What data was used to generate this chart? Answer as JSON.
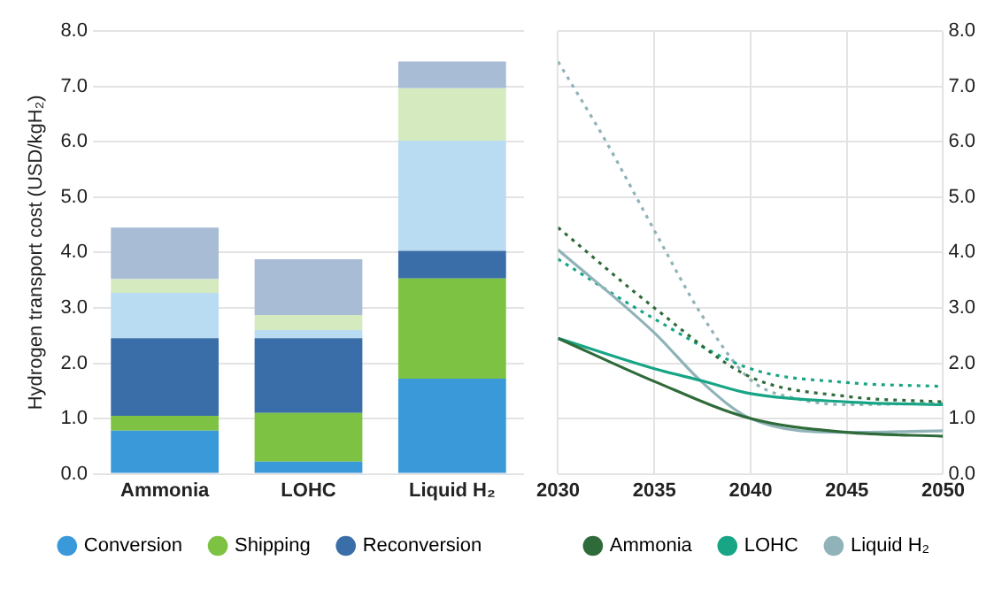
{
  "chart_data": [
    {
      "type": "bar",
      "ylabel": "Hydrogen transport cost (USD/kgH₂)",
      "categories": [
        "Ammonia",
        "LOHC",
        "Liquid H₂"
      ],
      "stacked": true,
      "series": [
        {
          "name": "Conversion",
          "color": "#3a9ad9",
          "values": [
            0.78,
            0.22,
            1.72
          ]
        },
        {
          "name": "Shipping",
          "color": "#7dc242",
          "values": [
            0.27,
            0.88,
            1.81
          ]
        },
        {
          "name": "Reconversion",
          "color": "#3a6ea8",
          "values": [
            1.4,
            1.35,
            0.5
          ]
        },
        {
          "color": "#b9dcf2",
          "values": [
            0.82,
            0.15,
            1.99
          ]
        },
        {
          "color": "#d5ebbf",
          "values": [
            0.25,
            0.27,
            0.95
          ]
        },
        {
          "color": "#a9bcd6",
          "values": [
            0.93,
            1.01,
            0.48
          ]
        }
      ],
      "ylim": [
        0,
        8
      ],
      "yticks": [
        {
          "value": 0,
          "label": "0.0"
        },
        {
          "value": 1,
          "label": "1.0"
        },
        {
          "value": 2,
          "label": "2.0"
        },
        {
          "value": 3,
          "label": "3.0"
        },
        {
          "value": 4,
          "label": "4.0"
        },
        {
          "value": 5,
          "label": "5.0"
        },
        {
          "value": 6,
          "label": "6.0"
        },
        {
          "value": 7,
          "label": "7.0"
        },
        {
          "value": 8,
          "label": "8.0"
        }
      ],
      "grid": "y",
      "legend": "bottom"
    },
    {
      "type": "line",
      "x": [
        2030,
        2035,
        2040,
        2045,
        2050
      ],
      "marker": "none",
      "series": [
        {
          "name": "Ammonia",
          "color": "#2f6b3a",
          "axis": "y2",
          "line_style": "solid",
          "values": [
            2.45,
            1.67,
            1.0,
            0.75,
            0.68
          ]
        },
        {
          "name": "LOHC",
          "color": "#17a585",
          "axis": "y2",
          "line_style": "solid",
          "x": [
            2030,
            2035,
            2037.5,
            2040,
            2045,
            2050
          ],
          "values": [
            2.45,
            1.9,
            1.68,
            1.45,
            1.3,
            1.25
          ]
        },
        {
          "name": "Liquid H₂",
          "color": "#8fb3b8",
          "axis": "y2",
          "line_style": "solid",
          "x": [
            2030,
            2035,
            2037.5,
            2040,
            2045,
            2050
          ],
          "values": [
            4.05,
            2.55,
            1.65,
            1.0,
            0.75,
            0.78
          ]
        },
        {
          "color": "#2f6b3a",
          "axis": "y2",
          "line_style": "dotted",
          "values": [
            4.45,
            3.0,
            1.75,
            1.4,
            1.3
          ]
        },
        {
          "color": "#17a585",
          "axis": "y2",
          "line_style": "dotted",
          "values": [
            3.88,
            2.8,
            1.9,
            1.65,
            1.58
          ]
        },
        {
          "color": "#8fb3b8",
          "axis": "y2",
          "line_style": "dotted",
          "x": [
            2030,
            2032.5,
            2035,
            2037.5,
            2040,
            2042.5,
            2045,
            2050
          ],
          "values": [
            7.45,
            6.0,
            4.4,
            2.85,
            1.7,
            1.35,
            1.25,
            1.28
          ]
        }
      ],
      "xlim": [
        2030,
        2050
      ],
      "xticks": [
        2030,
        2035,
        2040,
        2045,
        2050
      ],
      "y2lim": [
        0,
        8
      ],
      "y2ticks": [
        {
          "value": 0,
          "label": "0.0"
        },
        {
          "value": 1,
          "label": "1.0"
        },
        {
          "value": 2,
          "label": "2.0"
        },
        {
          "value": 3,
          "label": "3.0"
        },
        {
          "value": 4,
          "label": "4.0"
        },
        {
          "value": 5,
          "label": "5.0"
        },
        {
          "value": 6,
          "label": "6.0"
        },
        {
          "value": 7,
          "label": "7.0"
        },
        {
          "value": 8,
          "label": "8.0"
        }
      ],
      "grid": true,
      "legend": "bottom"
    }
  ]
}
